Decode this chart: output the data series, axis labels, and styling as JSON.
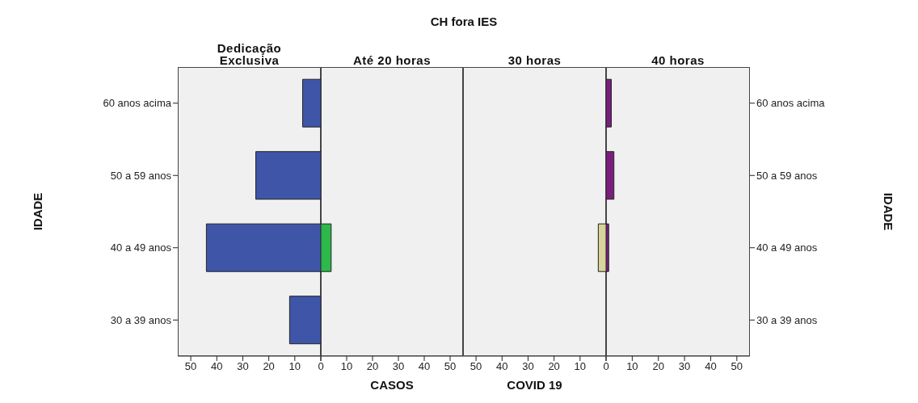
{
  "chart_data": [
    {
      "type": "bar",
      "orientation": "horizontal",
      "title": "Dedicação Exclusiva",
      "ylabel": "IDADE",
      "annotations": [
        "CH fora IES"
      ],
      "categories": [
        "60 anos acima",
        "50 a 59 anos",
        "40 a 49 anos",
        "30 a 39 anos"
      ],
      "series": [
        {
          "color": "#3f56a8",
          "values": [
            7,
            25,
            44,
            12
          ]
        }
      ],
      "xlim": [
        55,
        0
      ],
      "xticks": [
        {
          "value": 0,
          "label": null
        },
        10,
        20,
        30,
        40,
        50
      ]
    },
    {
      "type": "bar",
      "orientation": "horizontal",
      "title": "Até 20 horas",
      "xlabel": "CASOS",
      "categories": [
        null,
        null,
        null,
        null
      ],
      "series": [
        {
          "color": "#2db84a",
          "values": [
            0,
            0,
            4,
            0
          ]
        }
      ],
      "xlim": [
        0,
        55
      ],
      "xticks": [
        0,
        10,
        20,
        30,
        40,
        50
      ],
      "tick_labels": "x"
    },
    {
      "type": "bar",
      "orientation": "horizontal",
      "title": "30 horas",
      "xlabel": "COVID 19",
      "categories": [
        null,
        null,
        null,
        null
      ],
      "series": [
        {
          "color": "#d8d49a",
          "values": [
            0,
            0,
            3,
            0
          ]
        }
      ],
      "xlim": [
        55,
        0
      ],
      "xticks": [
        {
          "value": 0,
          "label": null
        },
        10,
        20,
        30,
        40,
        50
      ],
      "tick_labels": "x"
    },
    {
      "type": "bar",
      "orientation": "horizontal",
      "title": "40 horas",
      "y2label": "IDADE",
      "categories": [
        "60 anos acima",
        "50 a 59 anos",
        "40 a 49 anos",
        "30 a 39 anos"
      ],
      "series": [
        {
          "color": "#7a1e7e",
          "values": [
            2,
            3,
            1,
            0
          ]
        }
      ],
      "xlim": [
        0,
        55
      ],
      "xticks": [
        0,
        10,
        20,
        30,
        40,
        50
      ]
    }
  ]
}
